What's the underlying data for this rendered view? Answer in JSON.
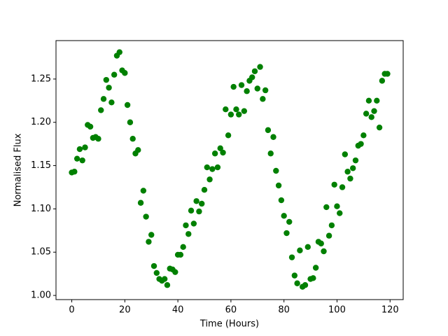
{
  "chart_data": {
    "type": "scatter",
    "xlabel": "Time (Hours)",
    "ylabel": "Normalised Flux",
    "x": [
      0,
      1,
      2,
      3,
      4,
      5,
      6,
      7,
      8,
      9,
      10,
      11,
      12,
      13,
      14,
      15,
      16,
      17,
      18,
      19,
      20,
      21,
      22,
      23,
      24,
      25,
      26,
      27,
      28,
      29,
      30,
      31,
      32,
      33,
      34,
      35,
      36,
      37,
      38,
      39,
      40,
      41,
      42,
      43,
      44,
      45,
      46,
      47,
      48,
      49,
      50,
      51,
      52,
      53,
      54,
      55,
      56,
      57,
      58,
      59,
      60,
      61,
      62,
      63,
      64,
      65,
      66,
      67,
      68,
      69,
      70,
      71,
      72,
      73,
      74,
      75,
      76,
      77,
      78,
      79,
      80,
      81,
      82,
      83,
      84,
      85,
      86,
      87,
      88,
      89,
      90,
      91,
      92,
      93,
      94,
      95,
      96,
      97,
      98,
      99,
      100,
      101,
      102,
      103,
      104,
      105,
      106,
      107,
      108,
      109,
      110,
      111,
      112,
      113,
      114,
      115,
      116,
      117,
      118,
      119
    ],
    "series": [
      {
        "name": "flux",
        "color": "#008000",
        "values": [
          1.142,
          1.143,
          1.158,
          1.169,
          1.156,
          1.171,
          1.197,
          1.195,
          1.182,
          1.183,
          1.181,
          1.214,
          1.227,
          1.249,
          1.24,
          1.223,
          1.255,
          1.277,
          1.281,
          1.26,
          1.257,
          1.22,
          1.2,
          1.181,
          1.164,
          1.168,
          1.107,
          1.121,
          1.091,
          1.062,
          1.07,
          1.034,
          1.026,
          1.019,
          1.017,
          1.019,
          1.012,
          1.031,
          1.03,
          1.027,
          1.047,
          1.047,
          1.056,
          1.081,
          1.071,
          1.098,
          1.083,
          1.109,
          1.097,
          1.106,
          1.122,
          1.148,
          1.134,
          1.146,
          1.164,
          1.148,
          1.17,
          1.165,
          1.215,
          1.185,
          1.209,
          1.241,
          1.215,
          1.209,
          1.243,
          1.213,
          1.236,
          1.248,
          1.252,
          1.259,
          1.239,
          1.264,
          1.227,
          1.237,
          1.191,
          1.164,
          1.183,
          1.144,
          1.127,
          1.11,
          1.092,
          1.072,
          1.085,
          1.044,
          1.023,
          1.014,
          1.052,
          1.01,
          1.012,
          1.056,
          1.019,
          1.02,
          1.032,
          1.062,
          1.06,
          1.051,
          1.102,
          1.069,
          1.081,
          1.128,
          1.103,
          1.095,
          1.125,
          1.163,
          1.143,
          1.135,
          1.147,
          1.156,
          1.173,
          1.175,
          1.185,
          1.21,
          1.225,
          1.206,
          1.213,
          1.225,
          1.194,
          1.248,
          1.256,
          1.256
        ]
      }
    ],
    "xlim": [
      -5.95,
      124.95
    ],
    "ylim": [
      0.9952,
      1.2944
    ],
    "xticks": [
      0,
      20,
      40,
      60,
      80,
      100,
      120
    ],
    "yticks": [
      {
        "value": 1.0,
        "label": "1.00"
      },
      {
        "value": 1.05,
        "label": "1.05"
      },
      {
        "value": 1.1,
        "label": "1.10"
      },
      {
        "value": 1.15,
        "label": "1.15"
      },
      {
        "value": 1.2,
        "label": "1.20"
      },
      {
        "value": 1.25,
        "label": "1.25"
      }
    ]
  }
}
